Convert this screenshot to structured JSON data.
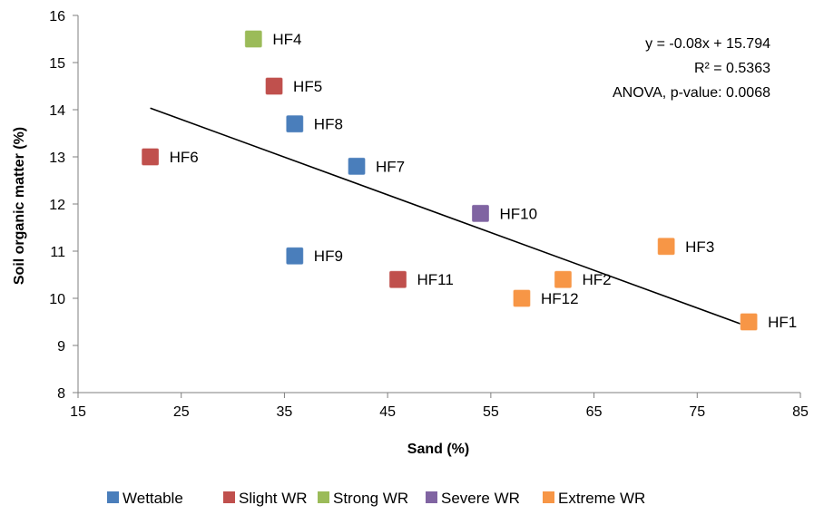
{
  "chart_data": {
    "type": "scatter",
    "xlabel": "Sand (%)",
    "ylabel": "Soil organic matter (%)",
    "xlim": [
      15,
      85
    ],
    "ylim": [
      8,
      16
    ],
    "xticks": [
      "15",
      "25",
      "35",
      "45",
      "55",
      "65",
      "75",
      "85"
    ],
    "yticks": [
      "8",
      "9",
      "10",
      "11",
      "12",
      "13",
      "14",
      "15",
      "16"
    ],
    "grid": false,
    "legend_position": "bottom",
    "series": [
      {
        "name": "Wettable",
        "color": "#4a7ebb",
        "points": [
          {
            "label": "HF8",
            "x": 36,
            "y": 13.7
          },
          {
            "label": "HF7",
            "x": 42,
            "y": 12.8
          },
          {
            "label": "HF9",
            "x": 36,
            "y": 10.9
          }
        ]
      },
      {
        "name": "Slight WR",
        "color": "#c0504d",
        "points": [
          {
            "label": "HF5",
            "x": 34,
            "y": 14.5
          },
          {
            "label": "HF6",
            "x": 22,
            "y": 13.0
          },
          {
            "label": "HF11",
            "x": 46,
            "y": 10.4
          }
        ]
      },
      {
        "name": "Strong WR",
        "color": "#9bbb59",
        "points": [
          {
            "label": "HF4",
            "x": 32,
            "y": 15.5
          }
        ]
      },
      {
        "name": "Severe WR",
        "color": "#8064a2",
        "points": [
          {
            "label": "HF10",
            "x": 54,
            "y": 11.8
          }
        ]
      },
      {
        "name": "Extreme WR",
        "color": "#f79646",
        "points": [
          {
            "label": "HF3",
            "x": 72,
            "y": 11.1
          },
          {
            "label": "HF2",
            "x": 62,
            "y": 10.4
          },
          {
            "label": "HF12",
            "x": 58,
            "y": 10.0
          },
          {
            "label": "HF1",
            "x": 80,
            "y": 9.5
          }
        ]
      }
    ],
    "trendline": {
      "slope": -0.08,
      "intercept": 15.794,
      "x_range": [
        22,
        80
      ]
    },
    "annotations": [
      "y = -0.08x + 15.794",
      "R² = 0.5363",
      "ANOVA, p-value: 0.0068"
    ]
  }
}
